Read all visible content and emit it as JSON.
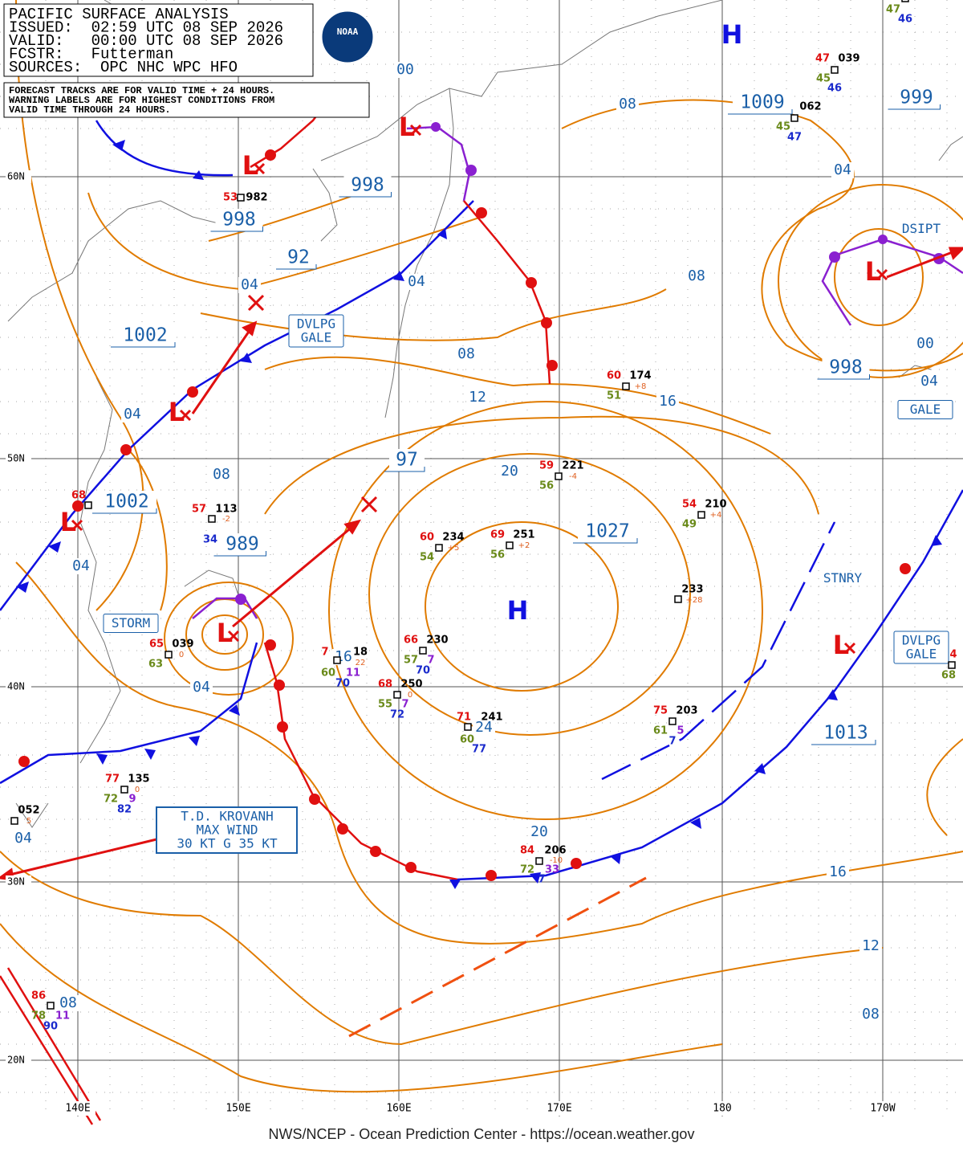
{
  "header": {
    "lines": [
      "PACIFIC SURFACE ANALYSIS",
      "ISSUED:  02:59 UTC 08 SEP 2026",
      "VALID:   00:00 UTC 08 SEP 2026",
      "FCSTR:   Futterman",
      "SOURCES:  OPC NHC WPC HFO"
    ]
  },
  "notes": {
    "lines": [
      "FORECAST TRACKS ARE FOR VALID TIME + 24 HOURS.",
      "WARNING LABELS ARE FOR HIGHEST CONDITIONS FROM",
      "VALID TIME THROUGH 24 HOURS."
    ]
  },
  "logo": "NOAA",
  "footer": "NWS/NCEP - Ocean Prediction Center - https://ocean.weather.gov",
  "grid": {
    "latitudes": [
      "60N",
      "50N",
      "40N",
      "30N",
      "20N"
    ],
    "longitudes": [
      "140E",
      "150E",
      "160E",
      "170E",
      "180",
      "170W"
    ]
  },
  "pressure_centers": [
    "H",
    "H",
    "L",
    "L",
    "L",
    "L",
    "L",
    "L",
    "L"
  ],
  "pressure_labels": [
    "1009",
    "999",
    "998",
    "998",
    "92",
    "1002",
    "998",
    "97",
    "1002",
    "989",
    "1027",
    "1013"
  ],
  "isobar_labels": [
    "00",
    "08",
    "04",
    "04",
    "04",
    "08",
    "00",
    "04",
    "08",
    "12",
    "16",
    "04",
    "08",
    "20",
    "04",
    "04",
    "16",
    "24",
    "20",
    "04",
    "16",
    "12",
    "08",
    "08"
  ],
  "warning_labels": [
    [
      "DVLPG",
      "GALE"
    ],
    [
      "STORM"
    ],
    [
      "DSIPT"
    ],
    [
      "GALE"
    ],
    [
      "STNRY"
    ],
    [
      "DVLPG",
      "GALE"
    ]
  ],
  "storm_box": [
    "T.D. KROVANH",
    "MAX WIND",
    "30 KT G 35 KT"
  ],
  "station_plots": [
    [
      "47",
      "039",
      "45",
      "46"
    ],
    [
      "062",
      "45",
      "47"
    ],
    [
      "47",
      "46"
    ],
    [
      "60",
      "174",
      "51",
      "+8"
    ],
    [
      "59",
      "221",
      "56",
      "-4"
    ],
    [
      "54",
      "210",
      "49",
      "+4"
    ],
    [
      "60",
      "234",
      "54",
      "+5"
    ],
    [
      "69",
      "251",
      "56",
      "+2"
    ],
    [
      "233",
      "+28"
    ],
    [
      "57",
      "113",
      "-2",
      "34"
    ],
    [
      "65",
      "039",
      "63",
      "0"
    ],
    [
      "66",
      "230",
      "57",
      "7",
      "70"
    ],
    [
      "7",
      "18",
      "22",
      "60",
      "11",
      "70"
    ],
    [
      "68",
      "250",
      "0",
      "55",
      "7",
      "72"
    ],
    [
      "71",
      "241",
      "60",
      "77"
    ],
    [
      "75",
      "203",
      "61",
      "5",
      "7"
    ],
    [
      "77",
      "135",
      "0",
      "72",
      "9",
      "82"
    ],
    [
      "052",
      "5"
    ],
    [
      "84",
      "206",
      "-10",
      "72",
      "33",
      "7"
    ],
    [
      "86",
      "78",
      "11",
      "90"
    ],
    [
      "53",
      "982"
    ],
    [
      "68"
    ],
    [
      "4",
      "68"
    ]
  ]
}
